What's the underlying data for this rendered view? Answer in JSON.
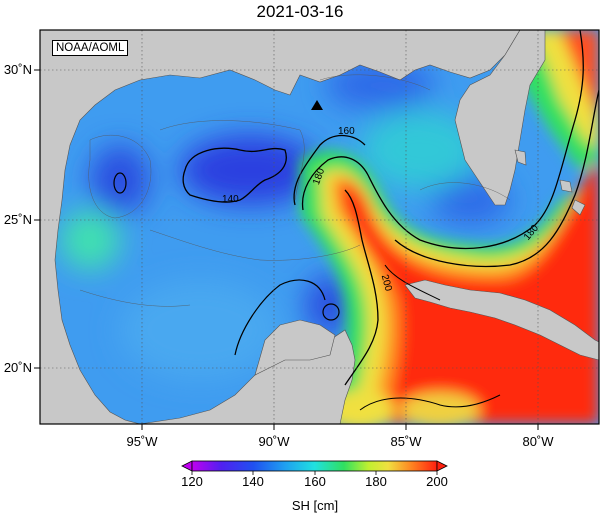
{
  "title": "2021-03-16",
  "credit": "NOAA/AOML",
  "colors": {
    "land": "#c8c8c8",
    "deep_blue": "#2a3fe0",
    "blue": "#3f8cf0",
    "cyan": "#22d2e0",
    "green": "#30e060",
    "yellow": "#f0e040",
    "orange": "#ff9020",
    "red": "#ff2a10"
  },
  "axes": {
    "x_ticks": [
      "95˚W",
      "90˚W",
      "85˚W",
      "80˚W"
    ],
    "y_ticks": [
      "30˚N",
      "25˚N",
      "20˚N"
    ]
  },
  "contour_labels": [
    "160",
    "180",
    "140",
    "180",
    "200"
  ],
  "marker": "triangle-icon",
  "colorbar": {
    "ticks": [
      "120",
      "140",
      "160",
      "180",
      "200"
    ],
    "label": "SH [cm]",
    "range": [
      120,
      200
    ]
  }
}
